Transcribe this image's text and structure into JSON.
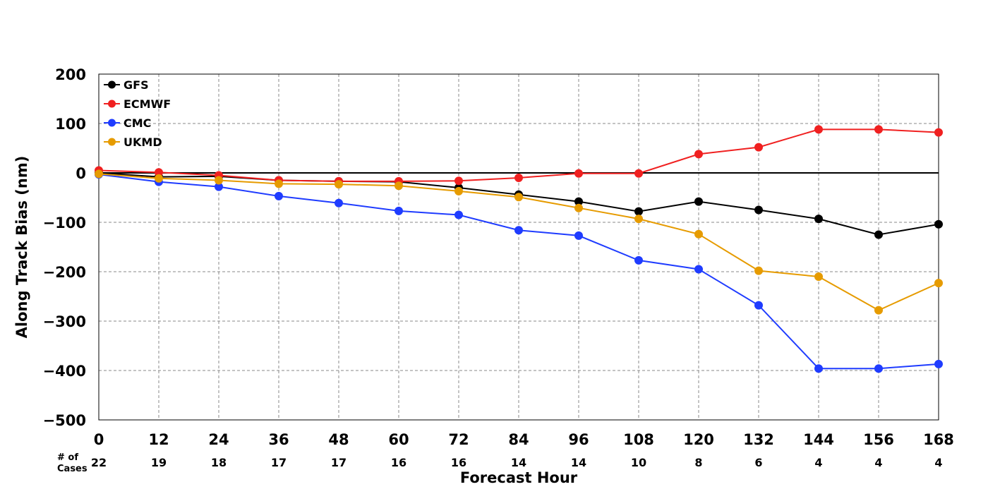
{
  "chart_data": {
    "type": "line",
    "title": "",
    "xlabel": "Forecast Hour",
    "ylabel": "Along Track Bias (nm)",
    "x": [
      0,
      12,
      24,
      36,
      48,
      60,
      72,
      84,
      96,
      108,
      120,
      132,
      144,
      156,
      168
    ],
    "xlim": [
      0,
      168
    ],
    "ylim": [
      -500,
      200
    ],
    "xticks": [
      "0",
      "12",
      "24",
      "36",
      "48",
      "60",
      "72",
      "84",
      "96",
      "108",
      "120",
      "132",
      "144",
      "156",
      "168"
    ],
    "yticks": [
      "200",
      "100",
      "0",
      "−100",
      "−200",
      "−300",
      "−400",
      "−500"
    ],
    "ytick_values": [
      200,
      100,
      0,
      -100,
      -200,
      -300,
      -400,
      -500
    ],
    "grid": true,
    "legend_position": "top-left",
    "cases_label_line1": "# of",
    "cases_label_line2": "Cases",
    "cases": [
      "22",
      "19",
      "18",
      "17",
      "17",
      "16",
      "16",
      "14",
      "14",
      "10",
      "8",
      "6",
      "4",
      "4",
      "4"
    ],
    "series": [
      {
        "name": "GFS",
        "color": "#000000",
        "values": [
          0,
          -8,
          -7,
          -15,
          -17,
          -18,
          -30,
          -44,
          -58,
          -78,
          -58,
          -75,
          -93,
          -125,
          -104
        ]
      },
      {
        "name": "ECMWF",
        "color": "#f02020",
        "values": [
          5,
          1,
          -5,
          -15,
          -17,
          -17,
          -16,
          -10,
          -1,
          -1,
          38,
          52,
          88,
          88,
          82
        ]
      },
      {
        "name": "CMC",
        "color": "#1f3cff",
        "values": [
          -3,
          -18,
          -28,
          -47,
          -61,
          -77,
          -85,
          -116,
          -127,
          -177,
          -195,
          -268,
          -396,
          -396,
          -387
        ]
      },
      {
        "name": "UKMD",
        "color": "#e69b00",
        "values": [
          -2,
          -11,
          -15,
          -22,
          -23,
          -26,
          -37,
          -49,
          -71,
          -93,
          -124,
          -198,
          -210,
          -278,
          -223
        ]
      }
    ]
  }
}
